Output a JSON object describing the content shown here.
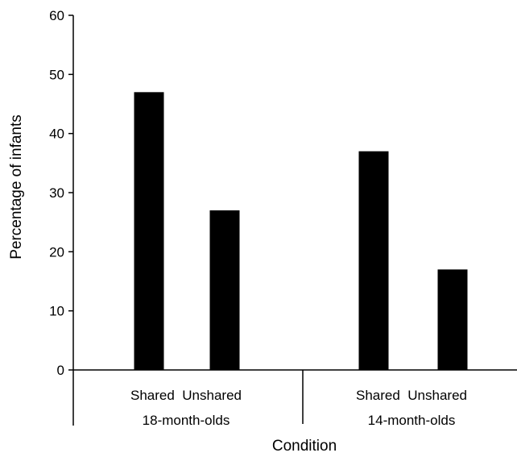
{
  "chart_data": {
    "type": "bar",
    "title": "",
    "xlabel": "Condition",
    "ylabel": "Percentage of infants",
    "ylim": [
      0,
      60
    ],
    "yticks": [
      "0",
      "10",
      "20",
      "30",
      "40",
      "50",
      "60"
    ],
    "grid": false,
    "legend": "none",
    "bar_color": "#000000",
    "groups": [
      {
        "label": "18-month-olds",
        "categories": [
          "Shared",
          "Unshared"
        ],
        "values": [
          47,
          27
        ]
      },
      {
        "label": "14-month-olds",
        "categories": [
          "Shared",
          "Unshared"
        ],
        "values": [
          37,
          17
        ]
      }
    ]
  }
}
